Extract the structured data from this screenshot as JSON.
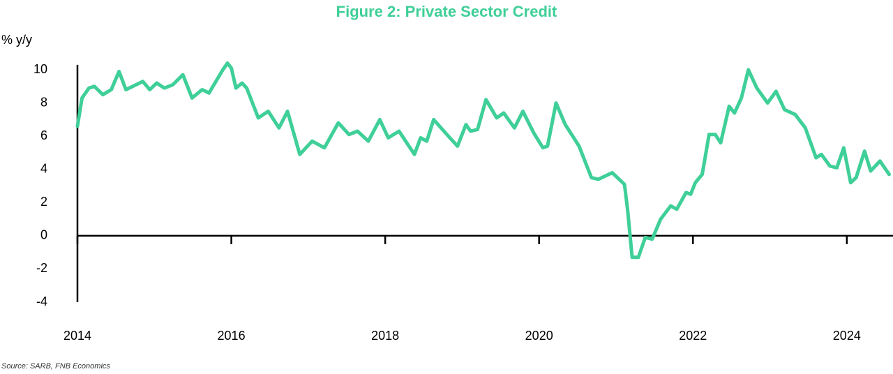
{
  "chart_data": {
    "type": "line",
    "title": "Figure 2: Private Sector Credit",
    "y_label": "% y/y",
    "source": "Source: SARB, FNB Economics",
    "color": "#3fcf98",
    "x": [
      2014.0,
      2014.06,
      2014.15,
      2014.22,
      2014.33,
      2014.44,
      2014.54,
      2014.63,
      2014.85,
      2014.94,
      2015.03,
      2015.13,
      2015.24,
      2015.37,
      2015.49,
      2015.62,
      2015.71,
      2015.89,
      2015.95,
      2016.0,
      2016.06,
      2016.14,
      2016.2,
      2016.35,
      2016.48,
      2016.62,
      2016.73,
      2016.89,
      2017.05,
      2017.21,
      2017.39,
      2017.53,
      2017.64,
      2017.78,
      2017.93,
      2018.04,
      2018.18,
      2018.38,
      2018.46,
      2018.54,
      2018.63,
      2018.84,
      2018.94,
      2019.05,
      2019.11,
      2019.2,
      2019.31,
      2019.45,
      2019.54,
      2019.68,
      2019.79,
      2019.93,
      2020.05,
      2020.11,
      2020.22,
      2020.34,
      2020.52,
      2020.68,
      2020.77,
      2020.95,
      2021.11,
      2021.15,
      2021.21,
      2021.29,
      2021.38,
      2021.47,
      2021.58,
      2021.71,
      2021.79,
      2021.91,
      2021.97,
      2022.03,
      2022.12,
      2022.21,
      2022.29,
      2022.36,
      2022.47,
      2022.54,
      2022.63,
      2022.72,
      2022.83,
      2022.97,
      2023.08,
      2023.19,
      2023.33,
      2023.46,
      2023.6,
      2023.67,
      2023.78,
      2023.87,
      2023.96,
      2024.05,
      2024.12,
      2024.23,
      2024.31,
      2024.43,
      2024.55
    ],
    "values": [
      6.6,
      8.3,
      8.9,
      9.0,
      8.5,
      8.8,
      9.9,
      8.8,
      9.3,
      8.8,
      9.2,
      8.9,
      9.1,
      9.7,
      8.3,
      8.8,
      8.6,
      10.0,
      10.4,
      10.1,
      8.9,
      9.2,
      8.9,
      7.1,
      7.5,
      6.5,
      7.5,
      4.9,
      5.7,
      5.3,
      6.8,
      6.1,
      6.3,
      5.7,
      7.0,
      5.9,
      6.3,
      4.9,
      5.9,
      5.7,
      7.0,
      5.9,
      5.4,
      6.7,
      6.3,
      6.4,
      8.2,
      7.1,
      7.4,
      6.5,
      7.5,
      6.2,
      5.3,
      5.4,
      8.0,
      6.7,
      5.4,
      3.5,
      3.4,
      3.8,
      3.1,
      1.6,
      -1.3,
      -1.3,
      -0.1,
      -0.2,
      1.0,
      1.8,
      1.6,
      2.6,
      2.5,
      3.2,
      3.7,
      6.1,
      6.1,
      5.6,
      7.8,
      7.4,
      8.3,
      10.0,
      8.9,
      8.0,
      8.7,
      7.6,
      7.3,
      6.5,
      4.7,
      4.9,
      4.2,
      4.1,
      5.3,
      3.2,
      3.5,
      5.1,
      3.9,
      4.5,
      3.7
    ],
    "xlim": [
      2014,
      2024.6
    ],
    "xticks": [
      2014,
      2016,
      2018,
      2020,
      2022,
      2024
    ],
    "ylim": [
      -4,
      10.3
    ],
    "yticks": [
      -4,
      -2,
      0,
      2,
      4,
      6,
      8,
      10
    ]
  }
}
